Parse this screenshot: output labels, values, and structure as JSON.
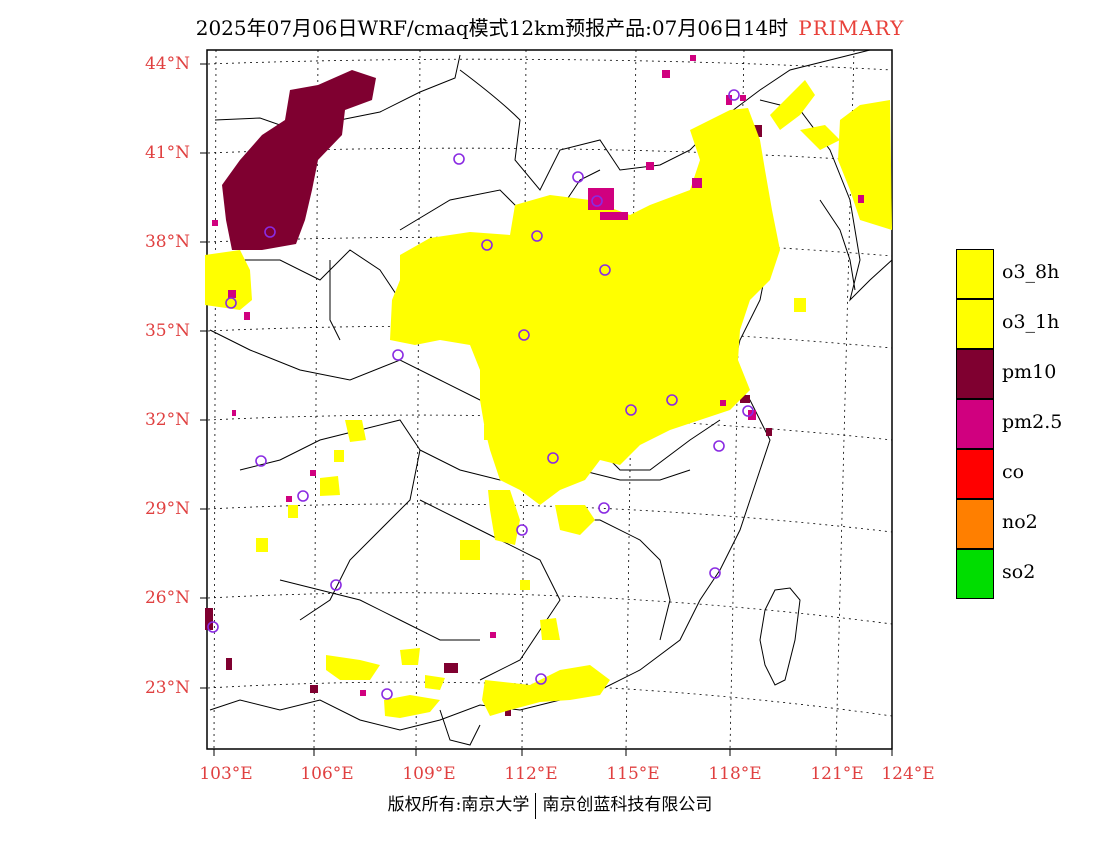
{
  "title": {
    "text": "2025年07月06日WRF/cmaq模式12km预报产品:07月06日14时",
    "tag": "PRIMARY"
  },
  "axes": {
    "lat_labels": [
      "44°N",
      "41°N",
      "38°N",
      "35°N",
      "32°N",
      "29°N",
      "26°N",
      "23°N"
    ],
    "lon_labels": [
      "103°E",
      "106°E",
      "109°E",
      "112°E",
      "115°E",
      "118°E",
      "121°E",
      "124°E"
    ]
  },
  "legend": {
    "items": [
      {
        "label": "o3_8h",
        "color": "#ffff00"
      },
      {
        "label": "o3_1h",
        "color": "#ffff00"
      },
      {
        "label": "pm10",
        "color": "#7f0030"
      },
      {
        "label": "pm2.5",
        "color": "#d0007f"
      },
      {
        "label": "co",
        "color": "#ff0000"
      },
      {
        "label": "no2",
        "color": "#ff7f00"
      },
      {
        "label": "so2",
        "color": "#00dd00"
      }
    ]
  },
  "footer": {
    "left": "版权所有:南京大学",
    "right": "南京创蓝科技有限公司"
  },
  "colors": {
    "axis_label": "#e04040",
    "tag": "#e8413a",
    "o3": "#ffff00",
    "pm10": "#7f0030",
    "pm25": "#d0007f",
    "station_marker": "#8a2be2"
  }
}
